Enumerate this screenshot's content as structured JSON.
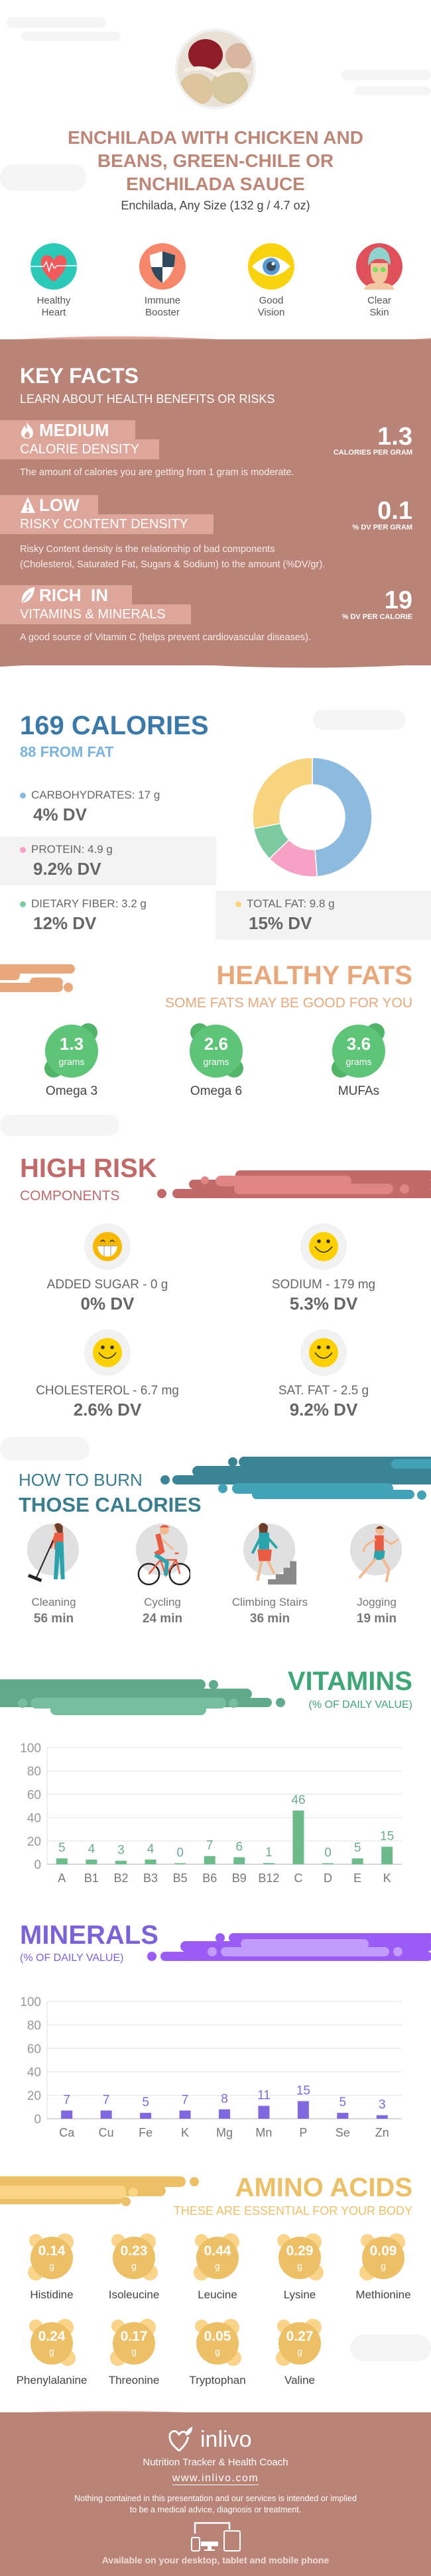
{
  "header": {
    "title_lines": [
      "ENCHILADA WITH CHICKEN AND",
      "BEANS, GREEN-CHILE OR",
      "ENCHILADA SAUCE"
    ],
    "serving": "Enchilada, Any Size (132 g / 4.7 oz)",
    "photo_icon": "beans-sacks-photo"
  },
  "benefits": [
    {
      "lines": [
        "Healthy",
        "Heart"
      ],
      "icon": "heart-pulse-icon",
      "color": "#2cc9b9"
    },
    {
      "lines": [
        "Immune",
        "Booster"
      ],
      "icon": "shield-icon",
      "color": "#f7876b"
    },
    {
      "lines": [
        "Good",
        "Vision"
      ],
      "icon": "eye-icon",
      "color": "#f8d20f"
    },
    {
      "lines": [
        "Clear",
        "Skin"
      ],
      "icon": "face-mask-icon",
      "color": "#e0505a"
    }
  ],
  "key_facts": {
    "title": "KEY FACTS",
    "subtitle": "LEARN ABOUT HEALTH BENEFITS OR RISKS",
    "facts": [
      {
        "level": "MEDIUM",
        "label": "CALORIE DENSITY",
        "value": "1.3",
        "unit": "CALORIES PER GRAM",
        "icon": "flame-icon",
        "description": [
          "The amount of calories you are getting from 1 gram is moderate."
        ]
      },
      {
        "level": "LOW",
        "label": "RISKY CONTENT DENSITY",
        "value": "0.1",
        "unit": "% DV PER GRAM",
        "icon": "warning-icon",
        "description": [
          "Risky Content density is the relationship of bad components",
          "(Cholesterol, Saturated Fat, Sugars & Sodium) to the amount (%DV/gr)."
        ]
      },
      {
        "level": "RICH  IN",
        "label": "VITAMINS & MINERALS",
        "value": "19",
        "unit": "% DV PER CALORIE",
        "icon": "leaf-icon",
        "description": [
          "A good source of Vitamin C (helps prevent cardiovascular diseases)."
        ]
      }
    ]
  },
  "calories": {
    "title": "169 CALORIES",
    "from_fat": "88 FROM FAT",
    "macros": [
      {
        "label": "CARBOHYDRATES: 17 g",
        "dv": "4% DV",
        "color": "#8dbbe0"
      },
      {
        "label": "PROTEIN: 4.9 g",
        "dv": "9.2% DV",
        "color": "#f7a1c4"
      },
      {
        "label": "DIETARY FIBER: 3.2 g",
        "dv": "12% DV",
        "color": "#7dcaa0"
      },
      {
        "label": "TOTAL FAT: 9.8 g",
        "dv": "15% DV",
        "color": "#f9d47e"
      }
    ]
  },
  "healthy_fats": {
    "title": "HEALTHY FATS",
    "subtitle": "SOME FATS MAY BE GOOD FOR YOU",
    "color": "#e8a87c",
    "items": [
      {
        "value": "1.3",
        "unit": "grams",
        "name": "Omega 3"
      },
      {
        "value": "2.6",
        "unit": "grams",
        "name": "Omega 6"
      },
      {
        "value": "3.6",
        "unit": "grams",
        "name": "MUFAs"
      }
    ]
  },
  "high_risk": {
    "title": "HIGH RISK",
    "subtitle": "COMPONENTS",
    "color": "#c06a6a",
    "items": [
      {
        "label": "ADDED SUGAR - 0 g",
        "dv": "0% DV",
        "face": "grin"
      },
      {
        "label": "SODIUM - 179 mg",
        "dv": "5.3% DV",
        "face": "smile"
      },
      {
        "label": "CHOLESTEROL - 6.7 mg",
        "dv": "2.6% DV",
        "face": "smile"
      },
      {
        "label": "SAT. FAT - 2.5 g",
        "dv": "9.2% DV",
        "face": "smile"
      }
    ]
  },
  "burn": {
    "line1": "HOW TO BURN",
    "line2": "THOSE CALORIES",
    "color": "#3a7e8e",
    "activities": [
      {
        "name": "Cleaning",
        "time": "56 min",
        "icon": "cleaning-icon"
      },
      {
        "name": "Cycling",
        "time": "24 min",
        "icon": "cycling-icon"
      },
      {
        "name": "Climbing Stairs",
        "time": "36 min",
        "icon": "climbing-stairs-icon"
      },
      {
        "name": "Jogging",
        "time": "19 min",
        "icon": "jogging-icon"
      }
    ]
  },
  "vitamins": {
    "title": "VITAMINS",
    "subtitle": "(% OF DAILY VALUE)",
    "color": "#3fa676"
  },
  "minerals": {
    "title": "MINERALS",
    "subtitle": "(% OF DAILY VALUE)",
    "color": "#7c62d8"
  },
  "amino": {
    "title": "AMINO ACIDS",
    "subtitle": "THESE ARE ESSENTIAL FOR YOUR BODY",
    "color": "#edc068",
    "items": [
      {
        "value": "0.14",
        "unit": "g",
        "name": "Histidine"
      },
      {
        "value": "0.23",
        "unit": "g",
        "name": "Isoleucine"
      },
      {
        "value": "0.44",
        "unit": "g",
        "name": "Leucine"
      },
      {
        "value": "0.29",
        "unit": "g",
        "name": "Lysine"
      },
      {
        "value": "0.09",
        "unit": "g",
        "name": "Methionine"
      },
      {
        "value": "0.24",
        "unit": "g",
        "name": "Phenylalanine"
      },
      {
        "value": "0.17",
        "unit": "g",
        "name": "Threonine"
      },
      {
        "value": "0.05",
        "unit": "g",
        "name": "Tryptophan"
      },
      {
        "value": "0.27",
        "unit": "g",
        "name": "Valine"
      }
    ]
  },
  "footer": {
    "brand": "inlivo",
    "tagline": "Nutrition Tracker & Health Coach",
    "url": "www.inlivo.com",
    "disclaimer": [
      "Nothing contained in this presentation and our services is intended or implied",
      "to be a medical advice, diagnosis or treatment."
    ],
    "available": "Available on your desktop, tablet and mobile phone"
  },
  "chart_data": [
    {
      "type": "pie",
      "style": "donut",
      "categories": [
        "Carbohydrates",
        "Protein",
        "Dietary Fiber",
        "Total Fat"
      ],
      "values": [
        17,
        4.9,
        3.2,
        9.8
      ],
      "unit": "g",
      "colors": [
        "#8dbbe0",
        "#f7a1c4",
        "#7dcaa0",
        "#f9d47e"
      ]
    },
    {
      "type": "bar",
      "title": "VITAMINS",
      "subtitle": "(% OF DAILY VALUE)",
      "categories": [
        "A",
        "B1",
        "B2",
        "B3",
        "B5",
        "B6",
        "B9",
        "B12",
        "C",
        "D",
        "E",
        "K"
      ],
      "values": [
        5,
        4,
        3,
        4,
        0,
        7,
        6,
        1,
        46,
        0,
        5,
        15
      ],
      "ylim": [
        0,
        100
      ],
      "yticks": [
        0,
        20,
        40,
        60,
        80,
        100
      ],
      "grid": true,
      "color": "#6dba8a"
    },
    {
      "type": "bar",
      "title": "MINERALS",
      "subtitle": "(% OF DAILY VALUE)",
      "categories": [
        "Ca",
        "Cu",
        "Fe",
        "K",
        "Mg",
        "Mn",
        "P",
        "Se",
        "Zn"
      ],
      "values": [
        7,
        7,
        5,
        7,
        8,
        11,
        15,
        5,
        3
      ],
      "ylim": [
        0,
        100
      ],
      "yticks": [
        0,
        20,
        40,
        60,
        80,
        100
      ],
      "grid": true,
      "color": "#7f68e0"
    }
  ]
}
